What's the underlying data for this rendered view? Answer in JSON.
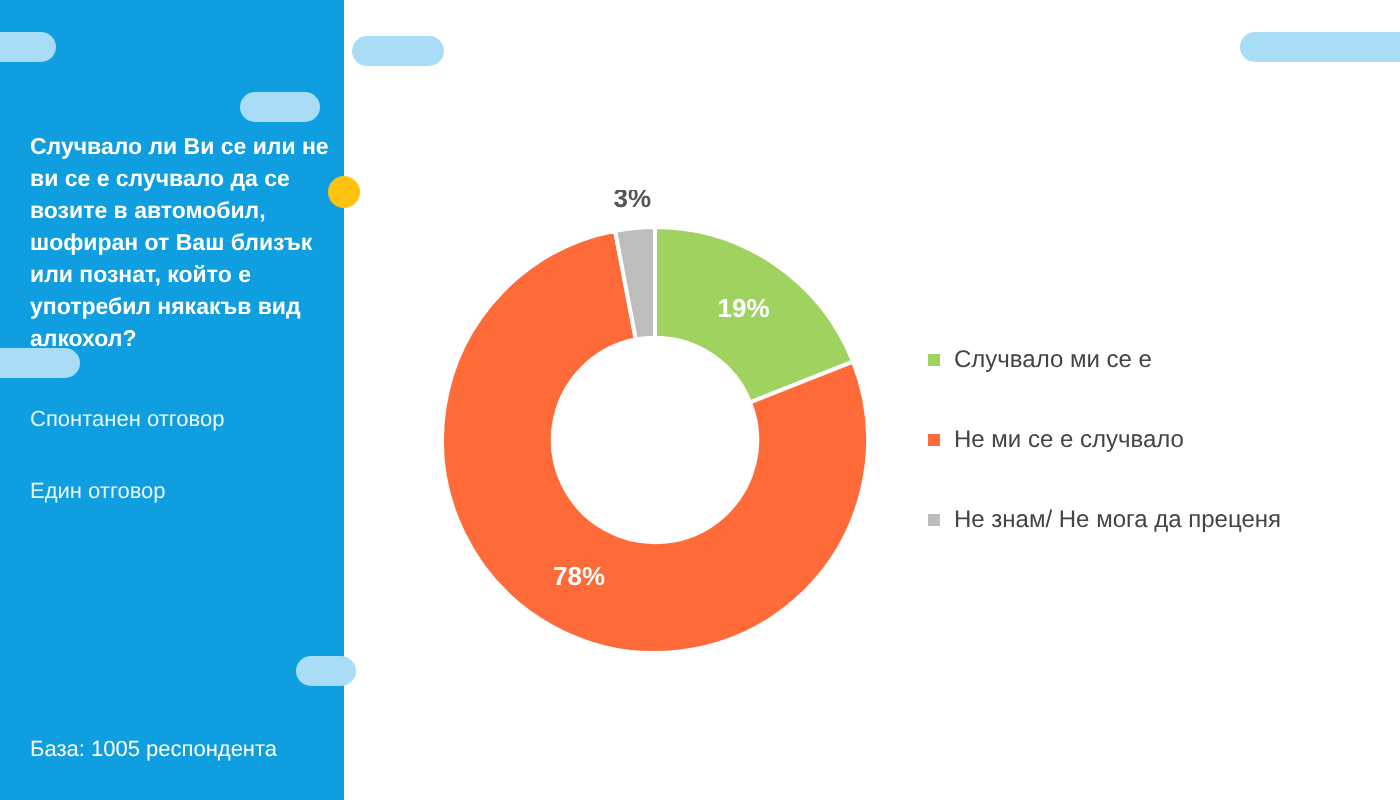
{
  "chart_data": {
    "type": "donut",
    "title": "Случвало ли Ви се или не ви се е случвало да се возите в автомобил, шофиран от Ваш близък или познат, който е употребил някакъв вид алкохол?",
    "annotations": [
      "Спонтанен отговор",
      "Един отговор",
      "База:  1005 респондента"
    ],
    "categories": [
      "Случвало ми се е",
      "Не ми се е случвало",
      "Не знам/ Не мога да преценя"
    ],
    "values": [
      19,
      78,
      3
    ],
    "value_labels": [
      "19%",
      "78%",
      "3%"
    ],
    "colors": [
      "#9fd25f",
      "#ff6a39",
      "#bdbdbd"
    ],
    "legend": "right"
  }
}
